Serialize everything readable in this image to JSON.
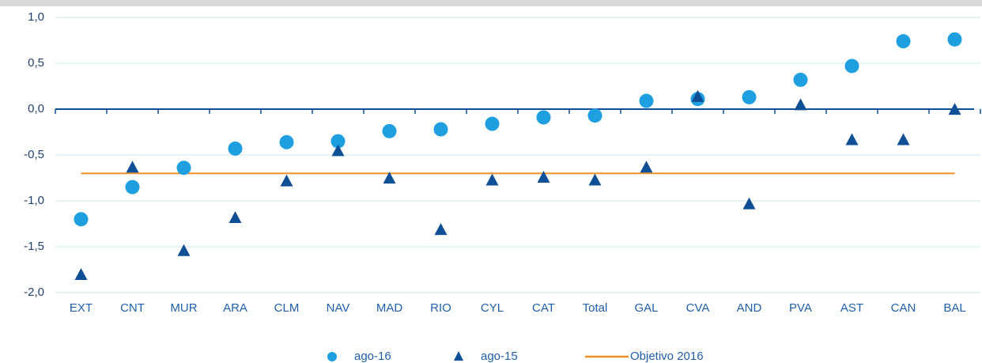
{
  "chart_data": {
    "type": "dot",
    "categories": [
      "EXT",
      "CNT",
      "MUR",
      "ARA",
      "CLM",
      "NAV",
      "MAD",
      "RIO",
      "CYL",
      "CAT",
      "Total",
      "GAL",
      "CVA",
      "AND",
      "PVA",
      "AST",
      "CAN",
      "BAL"
    ],
    "series": [
      {
        "name": "ago-16",
        "color": "#1ea0e0",
        "marker": "circle",
        "values": [
          -1.2,
          -0.85,
          -0.64,
          -0.43,
          -0.36,
          -0.35,
          -0.24,
          -0.22,
          -0.16,
          -0.09,
          -0.07,
          0.09,
          0.11,
          0.13,
          0.32,
          0.47,
          0.74,
          0.76
        ]
      },
      {
        "name": "ago-15",
        "color": "#0f4f96",
        "marker": "triangle",
        "values": [
          -1.81,
          -0.64,
          -1.55,
          -1.19,
          -0.79,
          -0.46,
          -0.76,
          -1.32,
          -0.78,
          -0.75,
          -0.78,
          -0.64,
          0.13,
          -1.04,
          0.04,
          -0.34,
          -0.34,
          -0.01
        ]
      }
    ],
    "reference_line": {
      "name": "Objetivo 2016",
      "value": -0.7,
      "color": "#f0902a"
    },
    "ylim": [
      -2.0,
      1.0
    ],
    "yticks": [
      {
        "value": -2.0,
        "label": "-2,0"
      },
      {
        "value": -1.5,
        "label": "-1,5"
      },
      {
        "value": -1.0,
        "label": "-1,0"
      },
      {
        "value": -0.5,
        "label": "-0,5"
      },
      {
        "value": 0.0,
        "label": "0,0"
      },
      {
        "value": 0.5,
        "label": "0,5"
      },
      {
        "value": 1.0,
        "label": "1,0"
      }
    ],
    "grid": true
  }
}
